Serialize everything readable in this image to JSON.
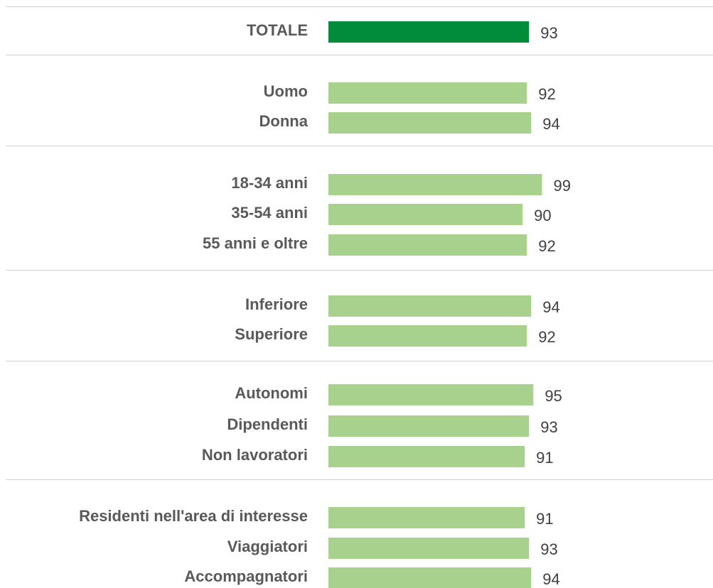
{
  "chart_data": {
    "type": "bar",
    "categories": [
      "TOTALE",
      "Uomo",
      "Donna",
      "18-34 anni",
      "35-54 anni",
      "55 anni e oltre",
      "Inferiore",
      "Superiore",
      "Autonomi",
      "Dipendenti",
      "Non lavoratori",
      "Residenti nell'area di interesse",
      "Viaggiatori",
      "Accompagnatori"
    ],
    "values": [
      93,
      92,
      94,
      99,
      90,
      92,
      94,
      92,
      95,
      93,
      91,
      91,
      93,
      94
    ],
    "colors": [
      "#008c3a",
      "#a9d18e",
      "#a9d18e",
      "#a9d18e",
      "#a9d18e",
      "#a9d18e",
      "#a9d18e",
      "#a9d18e",
      "#a9d18e",
      "#a9d18e",
      "#a9d18e",
      "#a9d18e",
      "#a9d18e",
      "#a9d18e"
    ]
  }
}
